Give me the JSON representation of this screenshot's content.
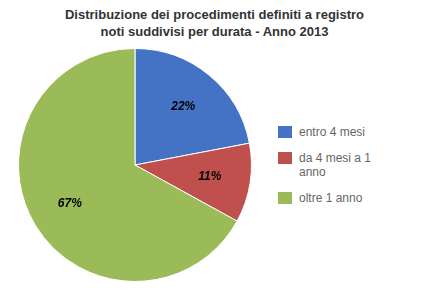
{
  "chart_data": {
    "type": "pie",
    "title": "Distribuzione dei procedimenti definiti a registro\nnoti suddivisi per durata - Anno 2013",
    "categories": [
      "entro 4 mesi",
      "da 4 mesi a 1\nanno",
      "oltre 1 anno"
    ],
    "values": [
      22,
      11,
      67
    ],
    "value_labels": [
      "22%",
      "11%",
      "67%"
    ],
    "data_labels": true,
    "colors": [
      "#4472C4",
      "#C0504D",
      "#9BBB59"
    ],
    "legend": "right"
  }
}
